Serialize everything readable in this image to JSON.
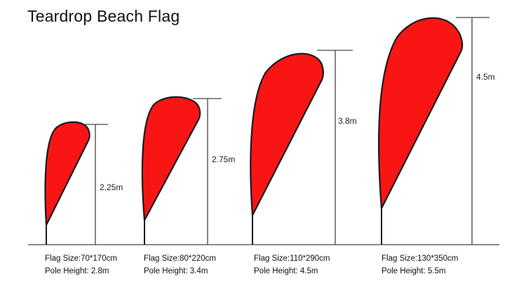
{
  "title": "Teardrop Beach Flag",
  "colors": {
    "flag": "#fa1515",
    "outline": "#1a1a1a",
    "lines": "#444444"
  },
  "flags": [
    {
      "flag_height": "2.25m",
      "size_label": "Flag Size:",
      "size": "70*170cm",
      "pole_label": "Pole Height:",
      "pole": "2.8m"
    },
    {
      "flag_height": "2.75m",
      "size_label": "Flag Size:",
      "size": "80*220cm",
      "pole_label": "Pole Height:",
      "pole": "3.4m"
    },
    {
      "flag_height": "3.8m",
      "size_label": "Flag Size:",
      "size": "110*290cm",
      "pole_label": "Pole Height:",
      "pole": "4.5m"
    },
    {
      "flag_height": "4.5m",
      "size_label": "Flag Size:",
      "size": "130*350cm",
      "pole_label": "Pole Height:",
      "pole": "5.5m"
    }
  ]
}
